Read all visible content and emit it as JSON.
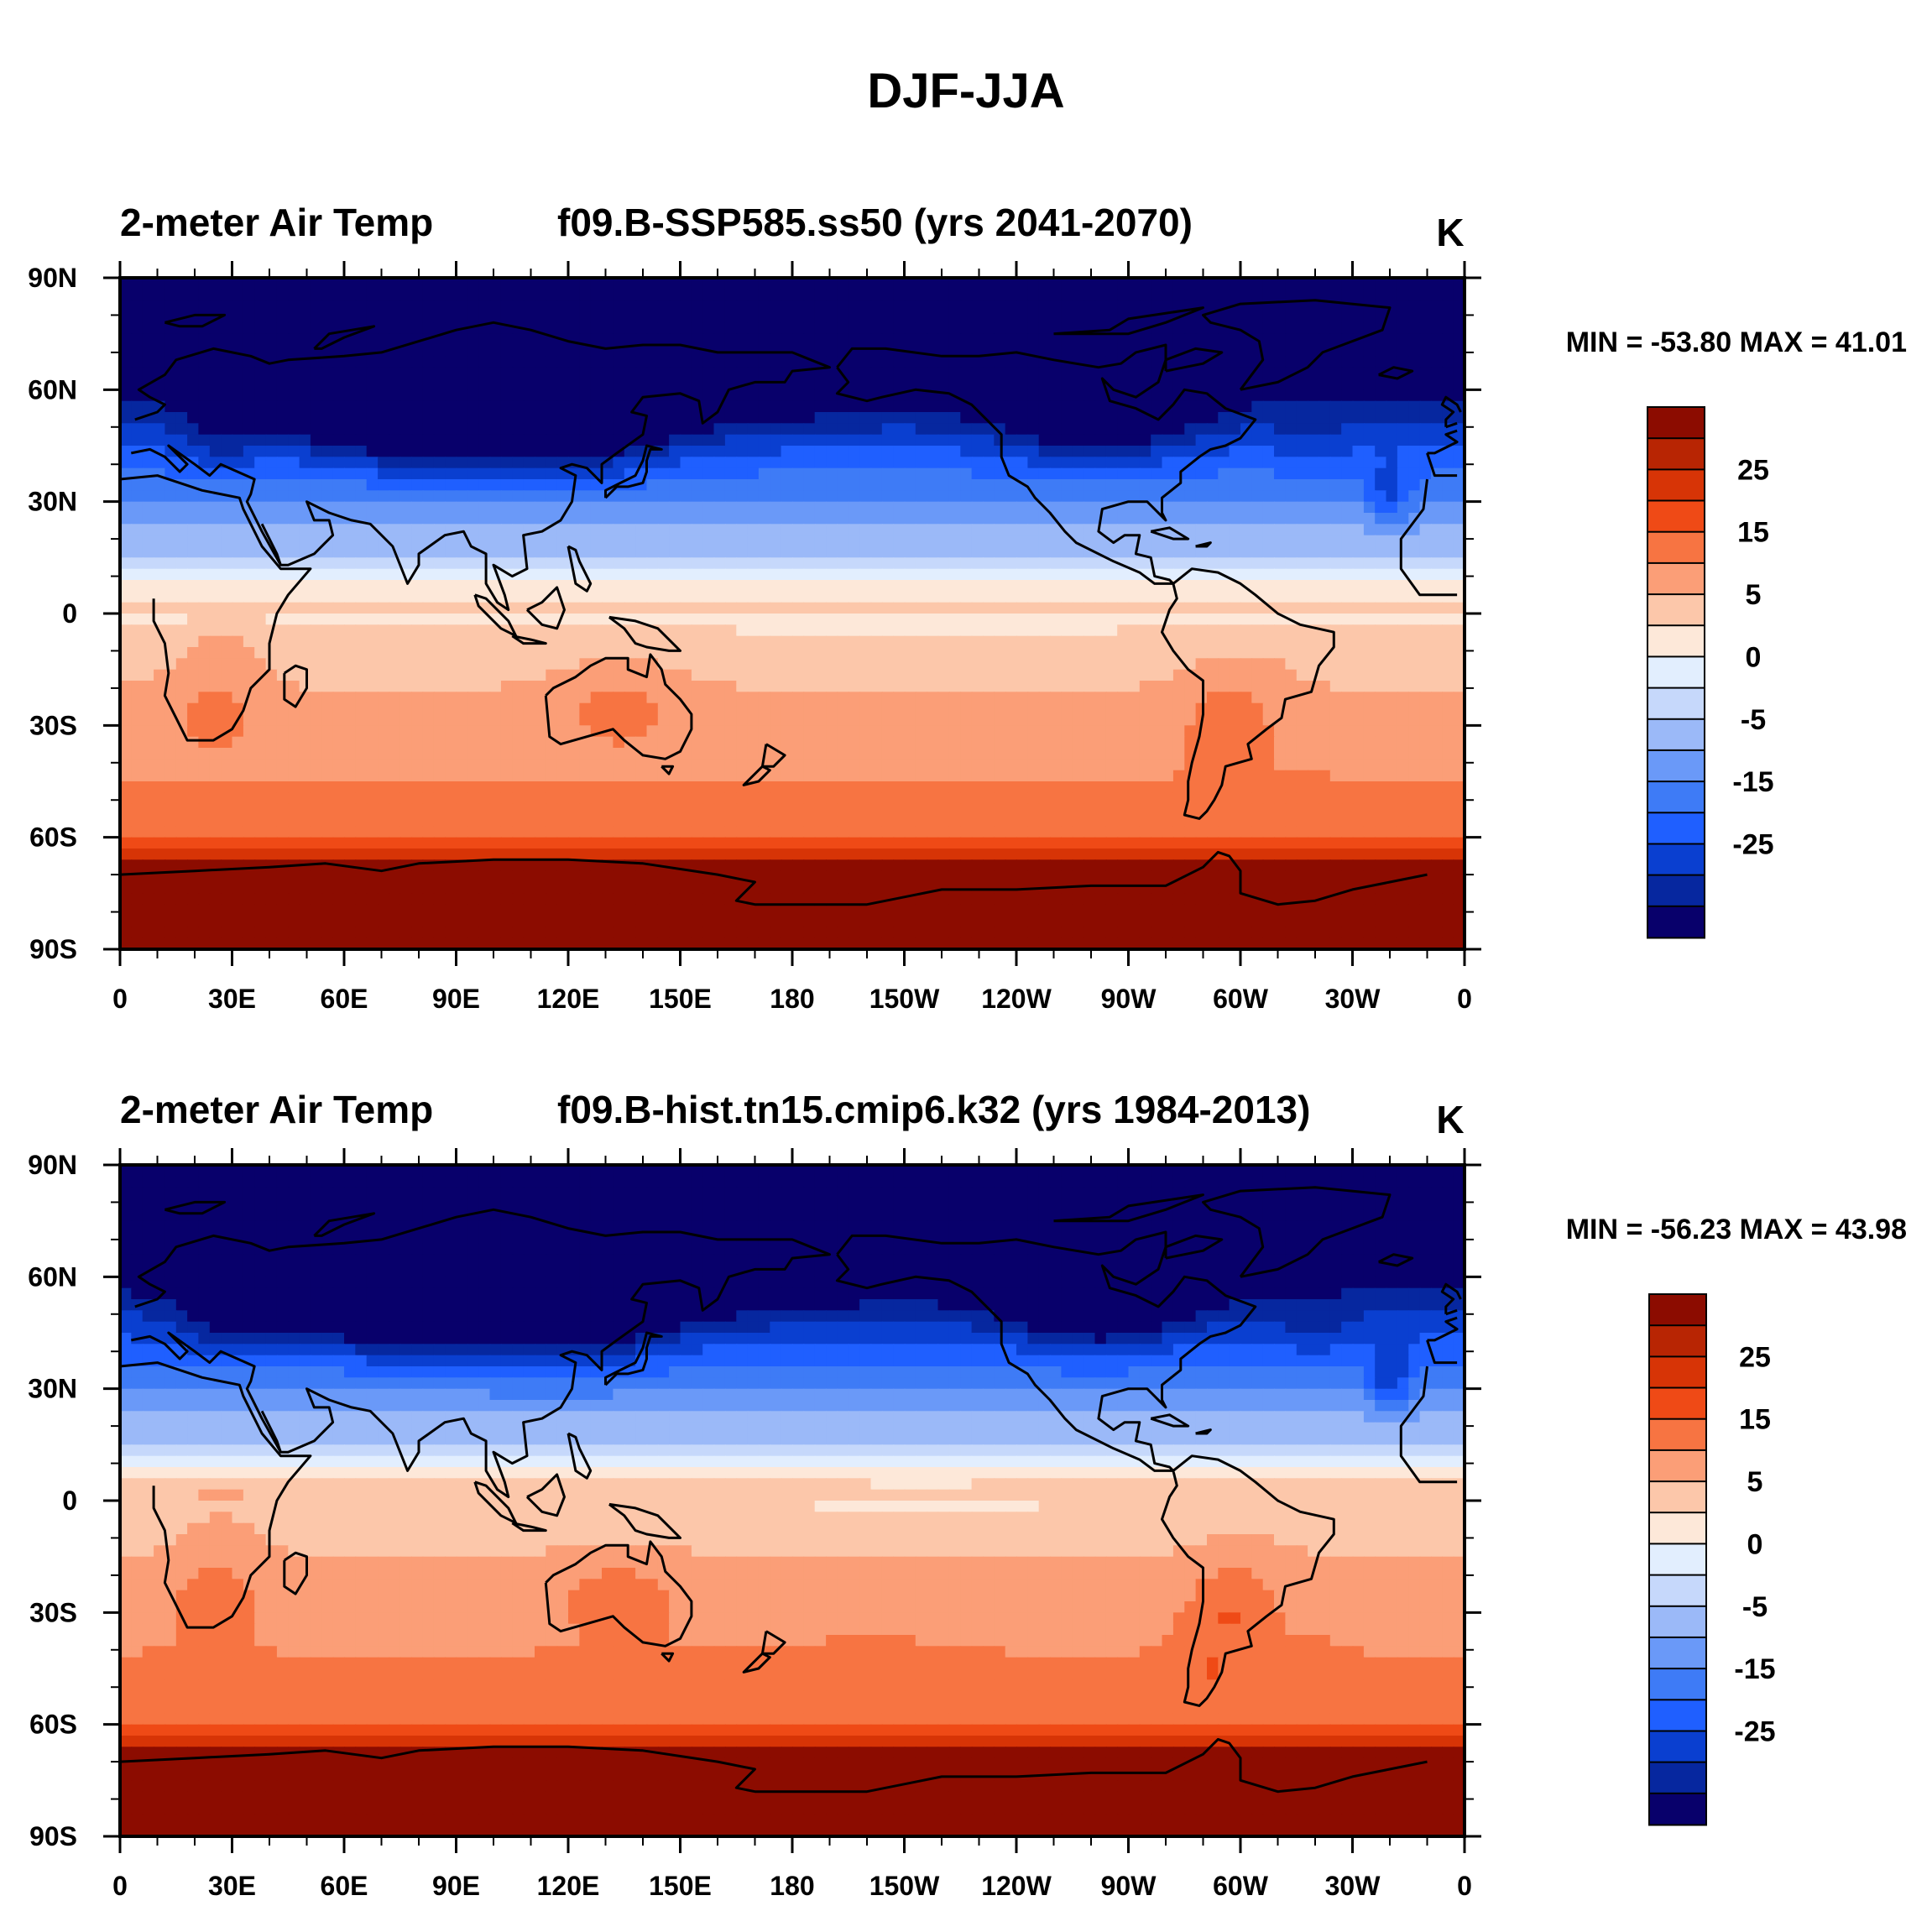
{
  "figure_title": "DJF-JJA",
  "colors": {
    "frame": "#000000",
    "coast": "#000000",
    "palette": [
      "#08006b",
      "#06279f",
      "#0a3fd0",
      "#1f5fff",
      "#3e7bf6",
      "#6a99f8",
      "#9bb9f8",
      "#c6d8fb",
      "#e2eefe",
      "#fde8d9",
      "#fcc7aa",
      "#fb9e77",
      "#f77442",
      "#ef4a16",
      "#d73406",
      "#b82503",
      "#8c0c00"
    ]
  },
  "colorbar_labels": [
    "25",
    "15",
    "5",
    "0",
    "-5",
    "-15",
    "-25"
  ],
  "chart_data": [
    {
      "type": "heatmap",
      "title_left": "2-meter Air Temp",
      "title_center": "f09.B-SSP585.ss50 (yrs 2041-2070)",
      "units": "K",
      "stats_text": "MIN = -53.80 MAX =  41.01",
      "min": -53.8,
      "max": 41.01,
      "x_ticks": [
        "0",
        "30E",
        "60E",
        "90E",
        "120E",
        "150E",
        "180",
        "150W",
        "120W",
        "90W",
        "60W",
        "30W",
        "0"
      ],
      "y_ticks": [
        "90N",
        "60N",
        "30N",
        "0",
        "30S",
        "60S",
        "90S"
      ],
      "xlim": [
        0,
        360
      ],
      "ylim": [
        -90,
        90
      ]
    },
    {
      "type": "heatmap",
      "title_left": "2-meter Air Temp",
      "title_center": "f09.B-hist.tn15.cmip6.k32 (yrs 1984-2013)",
      "units": "K",
      "stats_text": "MIN = -56.23 MAX =  43.98",
      "min": -56.23,
      "max": 43.98,
      "x_ticks": [
        "0",
        "30E",
        "60E",
        "90E",
        "120E",
        "150E",
        "180",
        "150W",
        "120W",
        "90W",
        "60W",
        "30W",
        "0"
      ],
      "y_ticks": [
        "90N",
        "60N",
        "30N",
        "0",
        "30S",
        "60S",
        "90S"
      ],
      "xlim": [
        0,
        360
      ],
      "ylim": [
        -90,
        90
      ]
    }
  ]
}
